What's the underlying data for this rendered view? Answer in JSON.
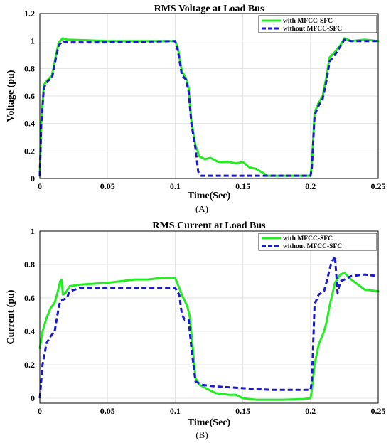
{
  "chart_data": [
    {
      "type": "line",
      "title": "RMS Voltage at Load Bus",
      "xlabel": "Time(Sec)",
      "ylabel": "Voltage (pu)",
      "panel_label": "(A)",
      "xlim": [
        0,
        0.25
      ],
      "ylim": [
        0,
        1.2
      ],
      "xticks": [
        0,
        0.05,
        0.1,
        0.15,
        0.2,
        0.25
      ],
      "xtick_labels": [
        "0",
        "0.05",
        "0.1",
        "0.15",
        "0.2",
        "0.25"
      ],
      "yticks": [
        0,
        0.2,
        0.4,
        0.6,
        0.8,
        1,
        1.2
      ],
      "ytick_labels": [
        "0",
        "0.2",
        "0.4",
        "0.6",
        "0.8",
        "1",
        "1.2"
      ],
      "grid": true,
      "legend_position": "top-right",
      "series": [
        {
          "name": "with MFCC-SFC",
          "color": "#22ee22",
          "style": "solid",
          "points": [
            [
              0,
              0.02
            ],
            [
              0.001,
              0.4
            ],
            [
              0.003,
              0.68
            ],
            [
              0.006,
              0.72
            ],
            [
              0.009,
              0.75
            ],
            [
              0.012,
              0.9
            ],
            [
              0.014,
              0.99
            ],
            [
              0.017,
              1.02
            ],
            [
              0.02,
              1.01
            ],
            [
              0.05,
              1.0
            ],
            [
              0.1,
              1.0
            ],
            [
              0.102,
              0.95
            ],
            [
              0.105,
              0.78
            ],
            [
              0.108,
              0.73
            ],
            [
              0.11,
              0.66
            ],
            [
              0.112,
              0.42
            ],
            [
              0.115,
              0.24
            ],
            [
              0.118,
              0.16
            ],
            [
              0.122,
              0.14
            ],
            [
              0.126,
              0.15
            ],
            [
              0.132,
              0.12
            ],
            [
              0.14,
              0.12
            ],
            [
              0.145,
              0.11
            ],
            [
              0.15,
              0.12
            ],
            [
              0.155,
              0.08
            ],
            [
              0.16,
              0.07
            ],
            [
              0.165,
              0.04
            ],
            [
              0.168,
              0.02
            ],
            [
              0.18,
              0.02
            ],
            [
              0.2,
              0.02
            ],
            [
              0.201,
              0.1
            ],
            [
              0.203,
              0.48
            ],
            [
              0.206,
              0.55
            ],
            [
              0.209,
              0.6
            ],
            [
              0.212,
              0.75
            ],
            [
              0.214,
              0.88
            ],
            [
              0.218,
              0.92
            ],
            [
              0.222,
              0.97
            ],
            [
              0.225,
              1.02
            ],
            [
              0.23,
              1.0
            ],
            [
              0.24,
              1.01
            ],
            [
              0.25,
              1.0
            ]
          ]
        },
        {
          "name": "without MFCC-SFC",
          "color": "#1a1acc",
          "style": "dashed",
          "points": [
            [
              0,
              0.02
            ],
            [
              0.001,
              0.38
            ],
            [
              0.003,
              0.66
            ],
            [
              0.006,
              0.71
            ],
            [
              0.009,
              0.73
            ],
            [
              0.012,
              0.88
            ],
            [
              0.014,
              0.97
            ],
            [
              0.017,
              1.0
            ],
            [
              0.02,
              0.99
            ],
            [
              0.05,
              0.99
            ],
            [
              0.1,
              1.0
            ],
            [
              0.102,
              0.93
            ],
            [
              0.105,
              0.75
            ],
            [
              0.108,
              0.72
            ],
            [
              0.11,
              0.63
            ],
            [
              0.112,
              0.4
            ],
            [
              0.115,
              0.22
            ],
            [
              0.117,
              0.05
            ],
            [
              0.119,
              0.02
            ],
            [
              0.15,
              0.02
            ],
            [
              0.2,
              0.02
            ],
            [
              0.201,
              0.08
            ],
            [
              0.203,
              0.46
            ],
            [
              0.206,
              0.53
            ],
            [
              0.209,
              0.58
            ],
            [
              0.212,
              0.72
            ],
            [
              0.214,
              0.85
            ],
            [
              0.218,
              0.9
            ],
            [
              0.222,
              0.96
            ],
            [
              0.225,
              1.01
            ],
            [
              0.23,
              1.0
            ],
            [
              0.24,
              1.0
            ],
            [
              0.25,
              1.0
            ]
          ]
        }
      ]
    },
    {
      "type": "line",
      "title": "RMS Current at Load Bus",
      "xlabel": "Time(Sec)",
      "ylabel": "Current (pu)",
      "panel_label": "(B)",
      "xlim": [
        0,
        0.25
      ],
      "ylim": [
        -0.03,
        1.0
      ],
      "xticks": [
        0,
        0.05,
        0.1,
        0.15,
        0.2,
        0.25
      ],
      "xtick_labels": [
        "0",
        "0.05",
        "0.1",
        "0.15",
        "0.2",
        "0.25"
      ],
      "yticks": [
        0,
        0.2,
        0.4,
        0.6,
        0.8,
        1
      ],
      "ytick_labels": [
        "0",
        "0.2",
        "0.4",
        "0.6",
        "0.8",
        "1"
      ],
      "grid": true,
      "legend_position": "top-right",
      "series": [
        {
          "name": "with MFCC-SFC",
          "color": "#22ee22",
          "style": "solid",
          "points": [
            [
              0,
              0.3
            ],
            [
              0.002,
              0.4
            ],
            [
              0.005,
              0.48
            ],
            [
              0.008,
              0.54
            ],
            [
              0.011,
              0.57
            ],
            [
              0.013,
              0.63
            ],
            [
              0.015,
              0.7
            ],
            [
              0.016,
              0.71
            ],
            [
              0.017,
              0.62
            ],
            [
              0.019,
              0.63
            ],
            [
              0.022,
              0.67
            ],
            [
              0.03,
              0.68
            ],
            [
              0.05,
              0.69
            ],
            [
              0.06,
              0.7
            ],
            [
              0.07,
              0.71
            ],
            [
              0.08,
              0.71
            ],
            [
              0.09,
              0.72
            ],
            [
              0.1,
              0.72
            ],
            [
              0.103,
              0.66
            ],
            [
              0.106,
              0.6
            ],
            [
              0.109,
              0.55
            ],
            [
              0.111,
              0.48
            ],
            [
              0.113,
              0.3
            ],
            [
              0.115,
              0.12
            ],
            [
              0.118,
              0.08
            ],
            [
              0.125,
              0.05
            ],
            [
              0.13,
              0.03
            ],
            [
              0.14,
              0.02
            ],
            [
              0.145,
              0.02
            ],
            [
              0.15,
              0.0
            ],
            [
              0.16,
              -0.01
            ],
            [
              0.18,
              -0.01
            ],
            [
              0.195,
              -0.005
            ],
            [
              0.2,
              0.0
            ],
            [
              0.201,
              0.05
            ],
            [
              0.203,
              0.2
            ],
            [
              0.206,
              0.32
            ],
            [
              0.21,
              0.4
            ],
            [
              0.212,
              0.46
            ],
            [
              0.214,
              0.55
            ],
            [
              0.216,
              0.62
            ],
            [
              0.218,
              0.69
            ],
            [
              0.222,
              0.74
            ],
            [
              0.225,
              0.75
            ],
            [
              0.23,
              0.71
            ],
            [
              0.235,
              0.68
            ],
            [
              0.24,
              0.65
            ],
            [
              0.25,
              0.64
            ]
          ]
        },
        {
          "name": "without MFCC-SFC",
          "color": "#1a1acc",
          "style": "dashed",
          "points": [
            [
              0,
              0.0
            ],
            [
              0.002,
              0.2
            ],
            [
              0.005,
              0.33
            ],
            [
              0.008,
              0.37
            ],
            [
              0.011,
              0.4
            ],
            [
              0.013,
              0.5
            ],
            [
              0.015,
              0.58
            ],
            [
              0.02,
              0.6
            ],
            [
              0.022,
              0.64
            ],
            [
              0.03,
              0.66
            ],
            [
              0.05,
              0.66
            ],
            [
              0.1,
              0.66
            ],
            [
              0.103,
              0.62
            ],
            [
              0.105,
              0.5
            ],
            [
              0.107,
              0.47
            ],
            [
              0.11,
              0.47
            ],
            [
              0.112,
              0.3
            ],
            [
              0.115,
              0.1
            ],
            [
              0.12,
              0.08
            ],
            [
              0.13,
              0.07
            ],
            [
              0.15,
              0.06
            ],
            [
              0.17,
              0.05
            ],
            [
              0.19,
              0.05
            ],
            [
              0.2,
              0.05
            ],
            [
              0.201,
              0.1
            ],
            [
              0.203,
              0.56
            ],
            [
              0.206,
              0.62
            ],
            [
              0.21,
              0.64
            ],
            [
              0.212,
              0.7
            ],
            [
              0.215,
              0.8
            ],
            [
              0.218,
              0.85
            ],
            [
              0.22,
              0.63
            ],
            [
              0.222,
              0.7
            ],
            [
              0.225,
              0.71
            ],
            [
              0.23,
              0.73
            ],
            [
              0.24,
              0.74
            ],
            [
              0.25,
              0.73
            ]
          ]
        }
      ]
    }
  ]
}
